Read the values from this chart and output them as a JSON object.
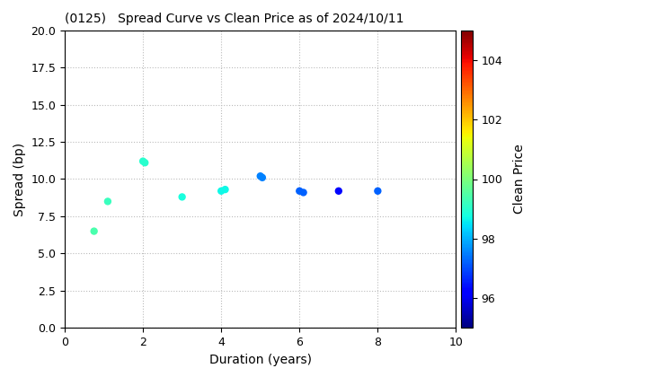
{
  "title": "(0125)   Spread Curve vs Clean Price as of 2024/10/11",
  "xlabel": "Duration (years)",
  "ylabel": "Spread (bp)",
  "colorbar_label": "Clean Price",
  "xlim": [
    0,
    10
  ],
  "ylim": [
    0.0,
    20.0
  ],
  "yticks": [
    0.0,
    2.5,
    5.0,
    7.5,
    10.0,
    12.5,
    15.0,
    17.5,
    20.0
  ],
  "xticks": [
    0,
    2,
    4,
    6,
    8,
    10
  ],
  "colorbar_range": [
    95.0,
    105.0
  ],
  "colorbar_ticks": [
    96,
    98,
    100,
    102,
    104
  ],
  "points": [
    {
      "duration": 0.75,
      "spread": 6.5,
      "price": 99.4
    },
    {
      "duration": 1.1,
      "spread": 8.5,
      "price": 99.2
    },
    {
      "duration": 2.0,
      "spread": 11.2,
      "price": 99.0
    },
    {
      "duration": 2.05,
      "spread": 11.1,
      "price": 99.0
    },
    {
      "duration": 3.0,
      "spread": 8.8,
      "price": 98.8
    },
    {
      "duration": 4.0,
      "spread": 9.2,
      "price": 98.7
    },
    {
      "duration": 4.1,
      "spread": 9.3,
      "price": 98.7
    },
    {
      "duration": 5.0,
      "spread": 10.2,
      "price": 97.5
    },
    {
      "duration": 5.05,
      "spread": 10.1,
      "price": 97.5
    },
    {
      "duration": 6.0,
      "spread": 9.2,
      "price": 97.2
    },
    {
      "duration": 6.1,
      "spread": 9.1,
      "price": 97.2
    },
    {
      "duration": 7.0,
      "spread": 9.2,
      "price": 96.3
    },
    {
      "duration": 8.0,
      "spread": 9.2,
      "price": 97.2
    }
  ],
  "marker_size": 25,
  "background_color": "#ffffff",
  "grid_color": "#bbbbbb",
  "colormap": "jet",
  "title_fontsize": 10,
  "label_fontsize": 10,
  "tick_fontsize": 9
}
